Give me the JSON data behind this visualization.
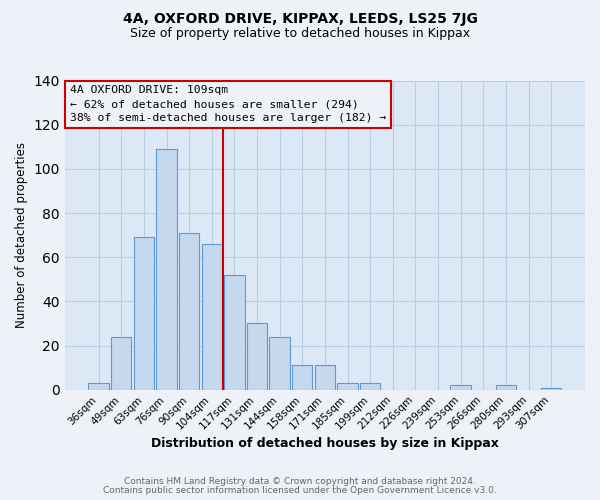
{
  "title": "4A, OXFORD DRIVE, KIPPAX, LEEDS, LS25 7JG",
  "subtitle": "Size of property relative to detached houses in Kippax",
  "xlabel": "Distribution of detached houses by size in Kippax",
  "ylabel": "Number of detached properties",
  "categories": [
    "36sqm",
    "49sqm",
    "63sqm",
    "76sqm",
    "90sqm",
    "104sqm",
    "117sqm",
    "131sqm",
    "144sqm",
    "158sqm",
    "171sqm",
    "185sqm",
    "199sqm",
    "212sqm",
    "226sqm",
    "239sqm",
    "253sqm",
    "266sqm",
    "280sqm",
    "293sqm",
    "307sqm"
  ],
  "values": [
    3,
    24,
    69,
    109,
    71,
    66,
    52,
    30,
    24,
    11,
    11,
    3,
    3,
    0,
    0,
    0,
    2,
    0,
    2,
    0,
    1
  ],
  "bar_color": "#c5d8ee",
  "bar_edge_color": "#5b9bd5",
  "vline_x_index": 6,
  "vline_color": "#cc0000",
  "ylim": [
    0,
    140
  ],
  "yticks": [
    0,
    20,
    40,
    60,
    80,
    100,
    120,
    140
  ],
  "annotation_title": "4A OXFORD DRIVE: 109sqm",
  "annotation_line1": "← 62% of detached houses are smaller (294)",
  "annotation_line2": "38% of semi-detached houses are larger (182) →",
  "annotation_box_edge_color": "#cc0000",
  "footnote1": "Contains HM Land Registry data © Crown copyright and database right 2024.",
  "footnote2": "Contains public sector information licensed under the Open Government Licence v3.0.",
  "background_color": "#eef2f8",
  "plot_bg_color": "#dce8f5",
  "grid_color": "#b8cfe0"
}
